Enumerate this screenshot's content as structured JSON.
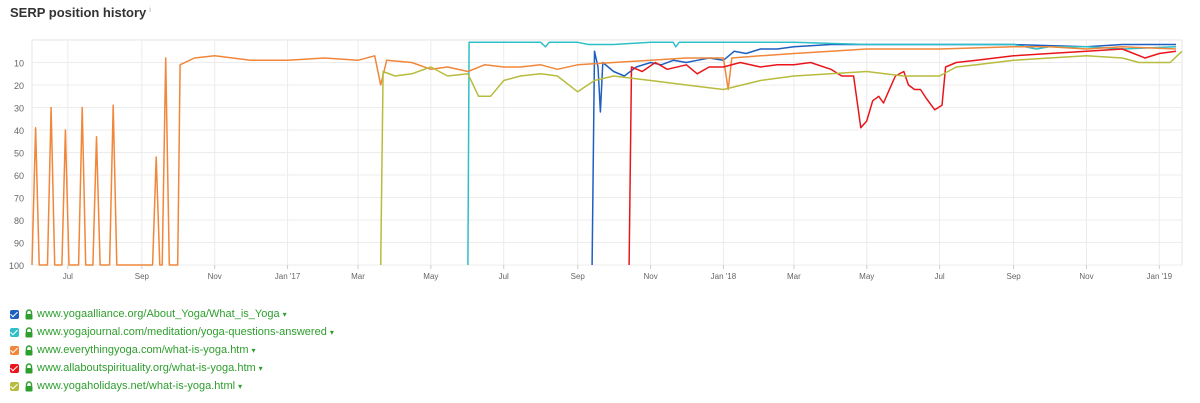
{
  "title": "SERP position history",
  "info_mark": "i",
  "chart_data": {
    "type": "line",
    "y_inverted": true,
    "ylim": [
      0,
      100
    ],
    "yticks": [
      10,
      20,
      30,
      40,
      50,
      60,
      70,
      80,
      90,
      100
    ],
    "xlim": [
      "2016-06-01",
      "2019-01-20"
    ],
    "xticks": [
      {
        "label": "Jul",
        "date": "2016-07-01"
      },
      {
        "label": "Sep",
        "date": "2016-09-01"
      },
      {
        "label": "Nov",
        "date": "2016-11-01"
      },
      {
        "label": "Jan '17",
        "date": "2017-01-01"
      },
      {
        "label": "Mar",
        "date": "2017-03-01"
      },
      {
        "label": "May",
        "date": "2017-05-01"
      },
      {
        "label": "Jul",
        "date": "2017-07-01"
      },
      {
        "label": "Sep",
        "date": "2017-09-01"
      },
      {
        "label": "Nov",
        "date": "2017-11-01"
      },
      {
        "label": "Jan '18",
        "date": "2018-01-01"
      },
      {
        "label": "Mar",
        "date": "2018-03-01"
      },
      {
        "label": "May",
        "date": "2018-05-01"
      },
      {
        "label": "Jul",
        "date": "2018-07-01"
      },
      {
        "label": "Sep",
        "date": "2018-09-01"
      },
      {
        "label": "Nov",
        "date": "2018-11-01"
      },
      {
        "label": "Jan '19",
        "date": "2019-01-01"
      }
    ],
    "grid": true,
    "legend_position": "bottom-left",
    "series": [
      {
        "name": "www.yogaalliance.org/About_Yoga/What_is_Yoga",
        "color": "#1f5fbf",
        "points": [
          [
            "2017-09-13",
            100
          ],
          [
            "2017-09-15",
            5
          ],
          [
            "2017-09-18",
            12
          ],
          [
            "2017-09-20",
            32
          ],
          [
            "2017-09-22",
            10
          ],
          [
            "2017-10-01",
            14
          ],
          [
            "2017-10-10",
            16
          ],
          [
            "2017-10-20",
            12
          ],
          [
            "2017-11-01",
            10
          ],
          [
            "2017-11-10",
            11
          ],
          [
            "2017-11-20",
            9
          ],
          [
            "2017-12-01",
            10
          ],
          [
            "2017-12-10",
            9
          ],
          [
            "2017-12-20",
            8
          ],
          [
            "2018-01-01",
            9
          ],
          [
            "2018-01-10",
            5
          ],
          [
            "2018-01-20",
            6
          ],
          [
            "2018-02-01",
            4
          ],
          [
            "2018-02-15",
            4
          ],
          [
            "2018-03-01",
            3
          ],
          [
            "2018-04-01",
            2
          ],
          [
            "2018-05-01",
            2
          ],
          [
            "2018-07-01",
            2
          ],
          [
            "2018-09-01",
            2
          ],
          [
            "2018-11-01",
            3
          ],
          [
            "2018-12-01",
            2
          ],
          [
            "2019-01-15",
            2
          ]
        ]
      },
      {
        "name": "www.yogajournal.com/meditation/yoga-questions-answered",
        "color": "#2fbfc9",
        "points": [
          [
            "2017-06-01",
            100
          ],
          [
            "2017-06-02",
            1
          ],
          [
            "2017-07-01",
            1
          ],
          [
            "2017-08-01",
            1
          ],
          [
            "2017-08-05",
            3
          ],
          [
            "2017-08-08",
            1
          ],
          [
            "2017-09-01",
            1
          ],
          [
            "2017-09-10",
            2
          ],
          [
            "2017-10-01",
            2
          ],
          [
            "2017-11-01",
            1
          ],
          [
            "2017-11-20",
            1
          ],
          [
            "2017-11-22",
            3
          ],
          [
            "2017-11-25",
            1
          ],
          [
            "2018-01-01",
            1
          ],
          [
            "2018-03-01",
            1
          ],
          [
            "2018-05-01",
            2
          ],
          [
            "2018-07-01",
            2
          ],
          [
            "2018-09-01",
            2
          ],
          [
            "2018-09-20",
            4
          ],
          [
            "2018-10-01",
            3
          ],
          [
            "2018-11-01",
            3
          ],
          [
            "2018-12-01",
            4
          ],
          [
            "2019-01-15",
            3
          ]
        ]
      },
      {
        "name": "www.everythingyoga.com/what-is-yoga.htm",
        "color": "#f0873a",
        "points": [
          [
            "2016-06-01",
            100
          ],
          [
            "2016-06-04",
            39
          ],
          [
            "2016-06-07",
            100
          ],
          [
            "2016-06-14",
            100
          ],
          [
            "2016-06-17",
            30
          ],
          [
            "2016-06-20",
            100
          ],
          [
            "2016-06-26",
            100
          ],
          [
            "2016-06-29",
            40
          ],
          [
            "2016-07-02",
            100
          ],
          [
            "2016-07-10",
            100
          ],
          [
            "2016-07-13",
            30
          ],
          [
            "2016-07-16",
            100
          ],
          [
            "2016-07-22",
            100
          ],
          [
            "2016-07-25",
            43
          ],
          [
            "2016-07-28",
            100
          ],
          [
            "2016-08-05",
            100
          ],
          [
            "2016-08-08",
            29
          ],
          [
            "2016-08-11",
            100
          ],
          [
            "2016-09-10",
            100
          ],
          [
            "2016-09-13",
            52
          ],
          [
            "2016-09-16",
            100
          ],
          [
            "2016-09-18",
            100
          ],
          [
            "2016-09-21",
            8
          ],
          [
            "2016-09-24",
            100
          ],
          [
            "2016-10-01",
            100
          ],
          [
            "2016-10-03",
            11
          ],
          [
            "2016-10-15",
            8
          ],
          [
            "2016-11-01",
            7
          ],
          [
            "2016-12-01",
            9
          ],
          [
            "2017-01-01",
            9
          ],
          [
            "2017-02-01",
            8
          ],
          [
            "2017-03-01",
            9
          ],
          [
            "2017-03-15",
            7
          ],
          [
            "2017-03-20",
            20
          ],
          [
            "2017-03-25",
            9
          ],
          [
            "2017-04-15",
            10
          ],
          [
            "2017-05-01",
            13
          ],
          [
            "2017-05-15",
            12
          ],
          [
            "2017-06-01",
            14
          ],
          [
            "2017-06-15",
            11
          ],
          [
            "2017-07-01",
            12
          ],
          [
            "2017-07-15",
            12
          ],
          [
            "2017-08-01",
            11
          ],
          [
            "2017-08-15",
            13
          ],
          [
            "2017-09-01",
            11
          ],
          [
            "2017-10-01",
            10
          ],
          [
            "2017-11-01",
            9
          ],
          [
            "2017-12-01",
            8
          ],
          [
            "2018-01-01",
            8
          ],
          [
            "2018-01-05",
            22
          ],
          [
            "2018-01-08",
            8
          ],
          [
            "2018-02-01",
            7
          ],
          [
            "2018-03-01",
            6
          ],
          [
            "2018-04-01",
            5
          ],
          [
            "2018-05-01",
            4
          ],
          [
            "2018-07-01",
            4
          ],
          [
            "2018-09-01",
            3
          ],
          [
            "2018-10-01",
            3
          ],
          [
            "2018-11-01",
            4
          ],
          [
            "2018-12-01",
            3
          ],
          [
            "2019-01-15",
            4
          ]
        ]
      },
      {
        "name": "www.allaboutspirituality.org/what-is-yoga.htm",
        "color": "#e8161b",
        "points": [
          [
            "2017-10-14",
            100
          ],
          [
            "2017-10-16",
            12
          ],
          [
            "2017-10-25",
            14
          ],
          [
            "2017-11-05",
            10
          ],
          [
            "2017-11-15",
            13
          ],
          [
            "2017-12-01",
            11
          ],
          [
            "2017-12-10",
            15
          ],
          [
            "2017-12-20",
            12
          ],
          [
            "2018-01-01",
            12
          ],
          [
            "2018-01-15",
            10
          ],
          [
            "2018-02-01",
            12
          ],
          [
            "2018-02-15",
            11
          ],
          [
            "2018-03-01",
            11
          ],
          [
            "2018-03-15",
            10
          ],
          [
            "2018-04-01",
            13
          ],
          [
            "2018-04-10",
            16
          ],
          [
            "2018-04-20",
            16
          ],
          [
            "2018-04-26",
            39
          ],
          [
            "2018-05-01",
            36
          ],
          [
            "2018-05-06",
            27
          ],
          [
            "2018-05-11",
            25
          ],
          [
            "2018-05-15",
            28
          ],
          [
            "2018-05-20",
            22
          ],
          [
            "2018-05-25",
            16
          ],
          [
            "2018-06-01",
            14
          ],
          [
            "2018-06-05",
            20
          ],
          [
            "2018-06-10",
            22
          ],
          [
            "2018-06-15",
            22
          ],
          [
            "2018-06-20",
            26
          ],
          [
            "2018-06-27",
            31
          ],
          [
            "2018-07-03",
            29
          ],
          [
            "2018-07-06",
            12
          ],
          [
            "2018-07-15",
            10
          ],
          [
            "2018-08-01",
            9
          ],
          [
            "2018-09-01",
            7
          ],
          [
            "2018-10-01",
            6
          ],
          [
            "2018-11-01",
            5
          ],
          [
            "2018-12-01",
            4
          ],
          [
            "2018-12-20",
            8
          ],
          [
            "2019-01-01",
            6
          ],
          [
            "2019-01-15",
            5
          ]
        ]
      },
      {
        "name": "www.yogaholidays.net/what-is-yoga.html",
        "color": "#b7bc3d",
        "points": [
          [
            "2017-03-20",
            100
          ],
          [
            "2017-03-22",
            14
          ],
          [
            "2017-04-01",
            16
          ],
          [
            "2017-04-15",
            15
          ],
          [
            "2017-05-01",
            12
          ],
          [
            "2017-05-15",
            16
          ],
          [
            "2017-06-01",
            15
          ],
          [
            "2017-06-10",
            25
          ],
          [
            "2017-06-20",
            25
          ],
          [
            "2017-07-01",
            18
          ],
          [
            "2017-07-15",
            16
          ],
          [
            "2017-08-01",
            15
          ],
          [
            "2017-08-15",
            16
          ],
          [
            "2017-09-01",
            23
          ],
          [
            "2017-09-15",
            18
          ],
          [
            "2017-10-01",
            16
          ],
          [
            "2017-11-01",
            18
          ],
          [
            "2017-12-01",
            20
          ],
          [
            "2018-01-01",
            22
          ],
          [
            "2018-02-01",
            18
          ],
          [
            "2018-03-01",
            16
          ],
          [
            "2018-04-01",
            15
          ],
          [
            "2018-05-01",
            14
          ],
          [
            "2018-06-01",
            16
          ],
          [
            "2018-07-01",
            16
          ],
          [
            "2018-07-15",
            12
          ],
          [
            "2018-08-01",
            11
          ],
          [
            "2018-09-01",
            9
          ],
          [
            "2018-10-01",
            8
          ],
          [
            "2018-11-01",
            7
          ],
          [
            "2018-12-01",
            8
          ],
          [
            "2018-12-15",
            10
          ],
          [
            "2019-01-10",
            10
          ],
          [
            "2019-01-20",
            5
          ]
        ]
      }
    ]
  },
  "legend": [
    {
      "label": "www.yogaalliance.org/About_Yoga/What_is_Yoga",
      "color": "#1f5fbf"
    },
    {
      "label": "www.yogajournal.com/meditation/yoga-questions-answered",
      "color": "#2fbfc9"
    },
    {
      "label": "www.everythingyoga.com/what-is-yoga.htm",
      "color": "#f0873a"
    },
    {
      "label": "www.allaboutspirituality.org/what-is-yoga.htm",
      "color": "#e8161b"
    },
    {
      "label": "www.yogaholidays.net/what-is-yoga.html",
      "color": "#b7bc3d"
    }
  ],
  "lock_color": "#2e9e2e",
  "caret": "▾"
}
